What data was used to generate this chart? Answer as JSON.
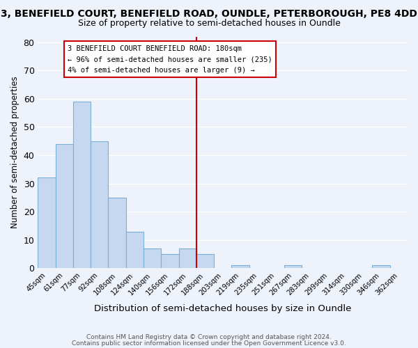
{
  "title": "3, BENEFIELD COURT, BENEFIELD ROAD, OUNDLE, PETERBOROUGH, PE8 4DD",
  "subtitle": "Size of property relative to semi-detached houses in Oundle",
  "xlabel": "Distribution of semi-detached houses by size in Oundle",
  "ylabel": "Number of semi-detached properties",
  "bin_labels": [
    "45sqm",
    "61sqm",
    "77sqm",
    "92sqm",
    "108sqm",
    "124sqm",
    "140sqm",
    "156sqm",
    "172sqm",
    "188sqm",
    "203sqm",
    "219sqm",
    "235sqm",
    "251sqm",
    "267sqm",
    "283sqm",
    "299sqm",
    "314sqm",
    "330sqm",
    "346sqm",
    "362sqm"
  ],
  "bar_heights": [
    32,
    44,
    59,
    45,
    25,
    13,
    7,
    5,
    7,
    5,
    0,
    1,
    0,
    0,
    1,
    0,
    0,
    0,
    0,
    1,
    0
  ],
  "bar_color": "#c5d8f0",
  "bar_edge_color": "#7bafd4",
  "vline_color": "#cc0000",
  "annotation_title": "3 BENEFIELD COURT BENEFIELD ROAD: 180sqm",
  "annotation_line1": "← 96% of semi-detached houses are smaller (235)",
  "annotation_line2": "4% of semi-detached houses are larger (9) →",
  "annotation_box_facecolor": "#ffffff",
  "annotation_box_edgecolor": "#cc0000",
  "ylim": [
    0,
    82
  ],
  "yticks": [
    0,
    10,
    20,
    30,
    40,
    50,
    60,
    70,
    80
  ],
  "footer1": "Contains HM Land Registry data © Crown copyright and database right 2024.",
  "footer2": "Contains public sector information licensed under the Open Government Licence v3.0.",
  "background_color": "#edf2fb",
  "grid_color": "#ffffff",
  "title_fontsize": 10,
  "subtitle_fontsize": 9
}
